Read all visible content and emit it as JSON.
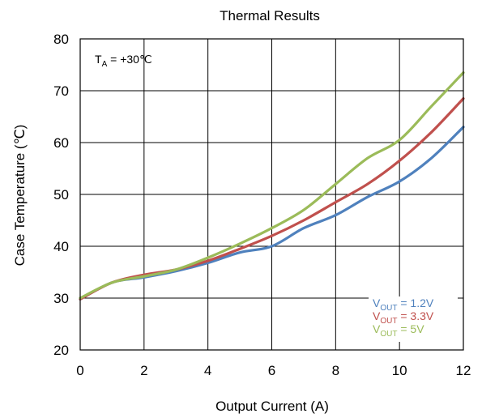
{
  "chart_data": {
    "type": "line",
    "title": "Thermal Results",
    "xlabel": "Output Current (A)",
    "ylabel": "Case Temperature (℃)",
    "xlim": [
      0,
      12
    ],
    "ylim": [
      20,
      80
    ],
    "xticks": [
      0,
      2,
      4,
      6,
      8,
      10,
      12
    ],
    "yticks": [
      20,
      30,
      40,
      50,
      60,
      70,
      80
    ],
    "grid": true,
    "legend_position": "bottom-right",
    "annotation": {
      "prefix": "T",
      "sub": "A",
      "suffix": " = +30℃"
    },
    "series": [
      {
        "label_main": "V",
        "label_sub": "OUT",
        "label_suffix": " = 1.2V",
        "color": "#4f81bd",
        "x": [
          0,
          1,
          2,
          3,
          4,
          5,
          6,
          7,
          8,
          9,
          10,
          11,
          12
        ],
        "y": [
          29.8,
          33,
          34,
          35.2,
          36.8,
          38.8,
          40,
          43.5,
          46,
          49.5,
          52.5,
          57,
          63
        ]
      },
      {
        "label_main": "V",
        "label_sub": "OUT",
        "label_suffix": " = 3.3V",
        "color": "#c0504d",
        "x": [
          0,
          1,
          2,
          3,
          4,
          5,
          6,
          7,
          8,
          9,
          10,
          11,
          12
        ],
        "y": [
          29.8,
          33,
          34.5,
          35.5,
          37.2,
          39.5,
          42,
          45,
          48.5,
          52,
          56.5,
          62,
          68.5
        ]
      },
      {
        "label_main": "V",
        "label_sub": "OUT",
        "label_suffix": " = 5V",
        "color": "#9bbb59",
        "x": [
          0,
          1,
          2,
          3,
          4,
          5,
          6,
          7,
          8,
          9,
          10,
          11,
          12
        ],
        "y": [
          30,
          33,
          34.2,
          35.5,
          37.8,
          40.5,
          43.5,
          47,
          52,
          57,
          60.5,
          67,
          73.5
        ]
      }
    ]
  }
}
